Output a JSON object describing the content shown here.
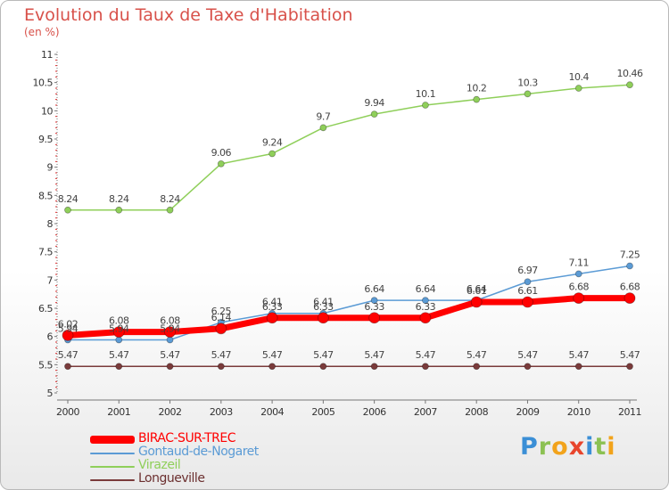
{
  "header": {
    "title": "Evolution du Taux de Taxe d'Habitation",
    "subtitle": "(en %)"
  },
  "logo": {
    "text": "Proxiti",
    "letters": [
      {
        "ch": "P",
        "color": "#3b8fd6"
      },
      {
        "ch": "r",
        "color": "#8cc152"
      },
      {
        "ch": "o",
        "color": "#f2a31b"
      },
      {
        "ch": "x",
        "color": "#e8452c"
      },
      {
        "ch": "i",
        "color": "#3b8fd6"
      },
      {
        "ch": "t",
        "color": "#8cc152"
      },
      {
        "ch": "i",
        "color": "#f2a31b"
      }
    ]
  },
  "chart_data": {
    "type": "line",
    "x": [
      "2000",
      "2001",
      "2002",
      "2003",
      "2004",
      "2005",
      "2006",
      "2007",
      "2008",
      "2009",
      "2010",
      "2011"
    ],
    "ylim": [
      5,
      11
    ],
    "yticks": [
      "5",
      "5.5",
      "6",
      "6.5",
      "7",
      "7.5",
      "8",
      "8.5",
      "9",
      "9.5",
      "10",
      "10.5",
      "11"
    ],
    "grid": false,
    "legend_position": "bottom-left",
    "series": [
      {
        "name": "Virazeil",
        "color": "#8fcf5a",
        "values": [
          8.24,
          8.24,
          8.24,
          9.06,
          9.24,
          9.7,
          9.94,
          10.1,
          10.2,
          10.3,
          10.4,
          10.46
        ],
        "labels": [
          "8.24",
          "8.24",
          "8.24",
          "9.06",
          "9.24",
          "9.7",
          "9.94",
          "10.1",
          "10.2",
          "10.3",
          "10.4",
          "10.46"
        ]
      },
      {
        "name": "Gontaud-de-Nogaret",
        "color": "#5b9bd5",
        "values": [
          5.94,
          5.94,
          5.94,
          6.25,
          6.41,
          6.41,
          6.64,
          6.64,
          6.64,
          6.97,
          7.11,
          7.25
        ],
        "labels": [
          "5.94",
          "5.94",
          "5.94",
          "6.25",
          "6.41",
          "6.41",
          "6.64",
          "6.64",
          "6.64",
          "6.97",
          "7.11",
          "7.25"
        ]
      },
      {
        "name": "BIRAC-SUR-TREC",
        "color": "#ff0000",
        "values": [
          6.02,
          6.08,
          6.08,
          6.14,
          6.33,
          6.33,
          6.33,
          6.33,
          6.61,
          6.61,
          6.68,
          6.68
        ],
        "labels": [
          "6.02",
          "6.08",
          "6.08",
          "6.14",
          "6.33",
          "6.33",
          "6.33",
          "6.33",
          "6.61",
          "6.61",
          "6.68",
          "6.68"
        ]
      },
      {
        "name": "Longueville",
        "color": "#7a3b3b",
        "values": [
          5.47,
          5.47,
          5.47,
          5.47,
          5.47,
          5.47,
          5.47,
          5.47,
          5.47,
          5.47,
          5.47,
          5.47
        ],
        "labels": [
          "5.47",
          "5.47",
          "5.47",
          "5.47",
          "5.47",
          "5.47",
          "5.47",
          "5.47",
          "5.47",
          "5.47",
          "5.47",
          "5.47"
        ]
      }
    ],
    "legend_order": [
      "BIRAC-SUR-TREC",
      "Gontaud-de-Nogaret",
      "Virazeil",
      "Longueville"
    ]
  }
}
